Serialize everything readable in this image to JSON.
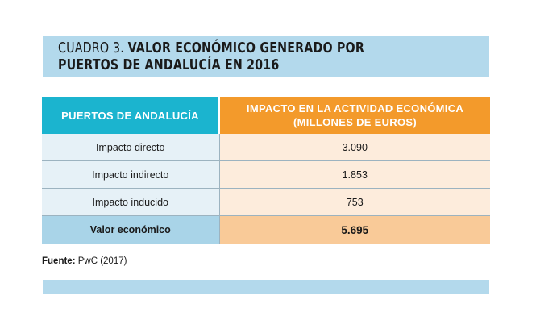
{
  "title": {
    "prefix": "CUADRO 3.",
    "line1": "VALOR ECONÓMICO GENERADO POR",
    "line2": "PUERTOS DE ANDALUCÍA EN 2016"
  },
  "table": {
    "headers": [
      "PUERTOS DE ANDALUCÍA",
      "IMPACTO EN LA ACTIVIDAD ECONÓMICA",
      "(MILLONES DE EUROS)"
    ],
    "rows": [
      {
        "label": "Impacto directo",
        "value": "3.090"
      },
      {
        "label": "Impacto indirecto",
        "value": "1.853"
      },
      {
        "label": "Impacto inducido",
        "value": "753"
      }
    ],
    "total": {
      "label": "Valor económico",
      "value": "5.695"
    }
  },
  "source": {
    "label": "Fuente:",
    "text": "PwC (2017)"
  },
  "colors": {
    "header_left": "#1bb4cf",
    "header_right": "#f39a2b",
    "band": "#b3d9ec",
    "row_left": "#e6f1f7",
    "row_right": "#fdecdc",
    "total_left": "#a9d4e8",
    "total_right": "#f9ca98"
  }
}
